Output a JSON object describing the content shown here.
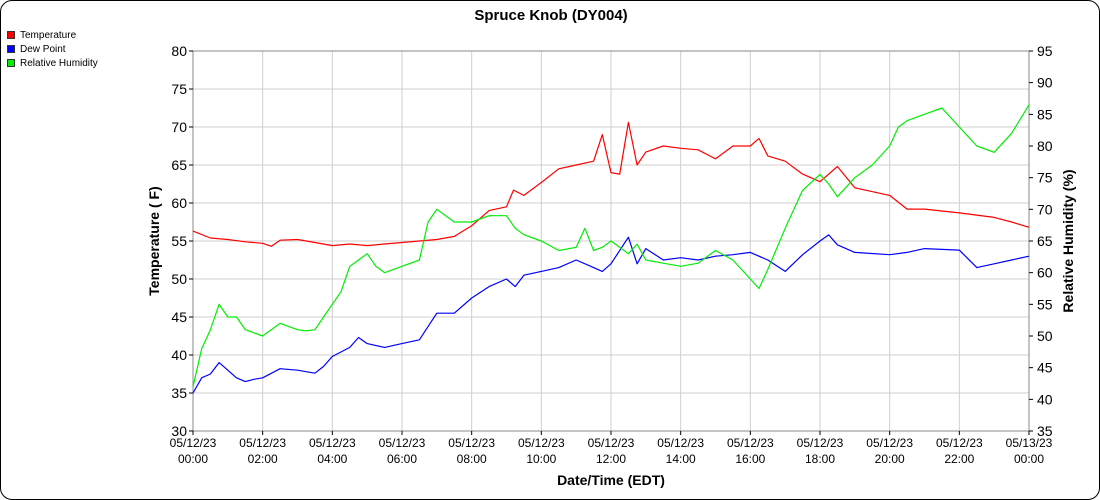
{
  "chart_data": {
    "type": "line",
    "title": "Spruce Knob (DY004)",
    "xlabel": "Date/Time (EDT)",
    "ylabel": "Temperature ( F)",
    "y2label": "Relative Humidity (%)",
    "ylim": [
      30,
      80
    ],
    "y2lim": [
      35,
      95
    ],
    "yticks": [
      "30",
      "35",
      "40",
      "45",
      "50",
      "55",
      "60",
      "65",
      "70",
      "75",
      "80"
    ],
    "y2ticks": [
      "35",
      "40",
      "45",
      "50",
      "55",
      "60",
      "65",
      "70",
      "75",
      "80",
      "85",
      "90",
      "95"
    ],
    "xlim": [
      0,
      24
    ],
    "xticks": [
      {
        "date": "05/12/23",
        "time": "00:00"
      },
      {
        "date": "05/12/23",
        "time": "02:00"
      },
      {
        "date": "05/12/23",
        "time": "04:00"
      },
      {
        "date": "05/12/23",
        "time": "06:00"
      },
      {
        "date": "05/12/23",
        "time": "08:00"
      },
      {
        "date": "05/12/23",
        "time": "10:00"
      },
      {
        "date": "05/12/23",
        "time": "12:00"
      },
      {
        "date": "05/12/23",
        "time": "14:00"
      },
      {
        "date": "05/12/23",
        "time": "16:00"
      },
      {
        "date": "05/12/23",
        "time": "18:00"
      },
      {
        "date": "05/12/23",
        "time": "20:00"
      },
      {
        "date": "05/12/23",
        "time": "22:00"
      },
      {
        "date": "05/13/23",
        "time": "00:00"
      }
    ],
    "grid": true,
    "legend_position": "top-left",
    "series": [
      {
        "name": "Temperature",
        "color": "#ff0000",
        "axis": "left",
        "x": [
          0,
          0.5,
          1,
          1.5,
          2,
          2.25,
          2.5,
          3,
          3.5,
          4,
          4.5,
          5,
          5.5,
          6,
          6.5,
          7,
          7.5,
          8,
          8.5,
          9,
          9.2,
          9.5,
          10,
          10.5,
          11,
          11.5,
          11.75,
          12,
          12.25,
          12.5,
          12.75,
          13,
          13.5,
          14,
          14.5,
          15,
          15.5,
          16,
          16.25,
          16.5,
          17,
          17.5,
          18,
          18.5,
          19,
          20,
          20.5,
          21,
          22,
          23,
          23.5,
          24
        ],
        "y": [
          56.3,
          55.4,
          55.2,
          54.9,
          54.7,
          54.3,
          55.1,
          55.2,
          54.8,
          54.4,
          54.6,
          54.4,
          54.6,
          54.8,
          55.0,
          55.2,
          55.6,
          57.0,
          59.0,
          59.5,
          61.7,
          61.0,
          62.7,
          64.5,
          65.0,
          65.5,
          69.0,
          64.0,
          63.8,
          70.6,
          65.0,
          66.7,
          67.5,
          67.2,
          67.0,
          65.8,
          67.5,
          67.5,
          68.5,
          66.2,
          65.5,
          63.8,
          62.8,
          64.8,
          62.0,
          61.0,
          59.2,
          59.2,
          58.7,
          58.1,
          57.5,
          56.8
        ]
      },
      {
        "name": "Dew Point",
        "color": "#0000ff",
        "axis": "left",
        "x": [
          0,
          0.25,
          0.5,
          0.75,
          1,
          1.25,
          1.5,
          1.75,
          2,
          2.5,
          3,
          3.5,
          3.75,
          4,
          4.5,
          4.75,
          5,
          5.5,
          6,
          6.5,
          7,
          7.5,
          8,
          8.5,
          9,
          9.25,
          9.5,
          10,
          10.5,
          11,
          11.5,
          11.75,
          12,
          12.5,
          12.75,
          13,
          13.5,
          14,
          14.5,
          15,
          15.5,
          16,
          16.5,
          17,
          17.5,
          18,
          18.25,
          18.5,
          19,
          20,
          20.5,
          21,
          22,
          22.5,
          23,
          23.5,
          24
        ],
        "y": [
          35.0,
          37.0,
          37.5,
          39.0,
          38.0,
          37.0,
          36.5,
          36.8,
          37.0,
          38.2,
          38.0,
          37.6,
          38.5,
          39.8,
          41.0,
          42.3,
          41.5,
          41.0,
          41.5,
          42.0,
          45.5,
          45.5,
          47.5,
          49.0,
          50.0,
          49.0,
          50.5,
          51.0,
          51.5,
          52.5,
          51.5,
          51.0,
          52.0,
          55.5,
          52.0,
          54.0,
          52.5,
          52.8,
          52.5,
          53.0,
          53.2,
          53.5,
          52.5,
          51.0,
          53.2,
          55.0,
          55.8,
          54.5,
          53.5,
          53.2,
          53.5,
          54.0,
          53.8,
          51.5,
          52.0,
          52.5,
          53.0
        ]
      },
      {
        "name": "Relative Humidity",
        "color": "#00ee00",
        "axis": "right",
        "x": [
          0,
          0.25,
          0.5,
          0.75,
          1,
          1.25,
          1.5,
          1.75,
          2,
          2.5,
          3,
          3.25,
          3.5,
          3.75,
          4,
          4.25,
          4.5,
          4.75,
          5,
          5.25,
          5.5,
          6,
          6.5,
          6.75,
          7,
          7.5,
          8,
          8.5,
          9,
          9.25,
          9.5,
          10,
          10.5,
          11,
          11.25,
          11.5,
          11.75,
          12,
          12.5,
          12.75,
          13,
          13.5,
          14,
          14.5,
          15,
          15.5,
          16,
          16.25,
          16.5,
          17,
          17.5,
          18,
          18.25,
          18.5,
          19,
          19.5,
          20,
          20.25,
          20.5,
          21,
          21.5,
          22,
          22.5,
          23,
          23.5,
          24
        ],
        "y": [
          42,
          48,
          51,
          55,
          53,
          53,
          51,
          50.5,
          50,
          52,
          51,
          50.8,
          51,
          53,
          55,
          57,
          61,
          62,
          63,
          61,
          60,
          61,
          62,
          68,
          70,
          68,
          68,
          69,
          69,
          67,
          66,
          65,
          63.5,
          64,
          67,
          63.5,
          64,
          65,
          63,
          64.5,
          62,
          61.5,
          61,
          61.5,
          63.5,
          62,
          59,
          57.5,
          60.5,
          67,
          73,
          75.5,
          74,
          72,
          75,
          77,
          80,
          83,
          84,
          85,
          86,
          83,
          80,
          79,
          82,
          86.5
        ]
      }
    ]
  }
}
